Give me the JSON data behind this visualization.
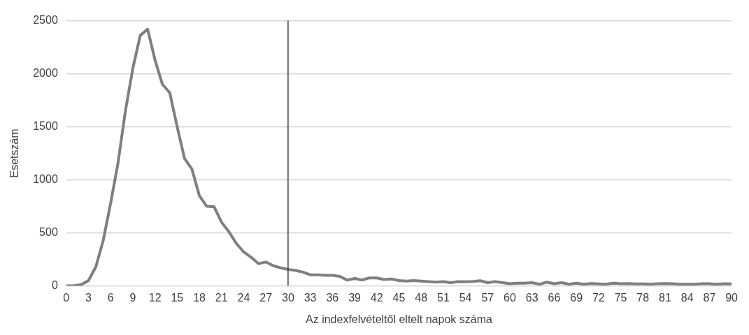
{
  "chart_data": {
    "type": "line",
    "xlabel": "Az indexfelvételtől eltelt napok száma",
    "ylabel": "Esetszám",
    "x": [
      0,
      1,
      2,
      3,
      4,
      5,
      6,
      7,
      8,
      9,
      10,
      11,
      12,
      13,
      14,
      15,
      16,
      17,
      18,
      19,
      20,
      21,
      22,
      23,
      24,
      25,
      26,
      27,
      28,
      29,
      30,
      31,
      32,
      33,
      34,
      35,
      36,
      37,
      38,
      39,
      40,
      41,
      42,
      43,
      44,
      45,
      46,
      47,
      48,
      49,
      50,
      51,
      52,
      53,
      54,
      55,
      56,
      57,
      58,
      59,
      60,
      61,
      62,
      63,
      64,
      65,
      66,
      67,
      68,
      69,
      70,
      71,
      72,
      73,
      74,
      75,
      76,
      77,
      78,
      79,
      80,
      81,
      82,
      83,
      84,
      85,
      86,
      87,
      88,
      89,
      90
    ],
    "series": [
      {
        "color": "#7f7f7f",
        "values": [
          0,
          2,
          10,
          50,
          180,
          430,
          780,
          1160,
          1650,
          2050,
          2360,
          2420,
          2130,
          1900,
          1820,
          1500,
          1200,
          1100,
          850,
          750,
          745,
          600,
          510,
          400,
          320,
          270,
          210,
          225,
          190,
          170,
          155,
          145,
          130,
          105,
          105,
          100,
          100,
          90,
          55,
          70,
          55,
          75,
          75,
          60,
          65,
          50,
          45,
          50,
          45,
          40,
          35,
          40,
          30,
          40,
          38,
          42,
          48,
          30,
          40,
          30,
          20,
          25,
          25,
          30,
          15,
          35,
          20,
          30,
          15,
          25,
          15,
          22,
          18,
          15,
          25,
          20,
          22,
          18,
          18,
          15,
          20,
          22,
          20,
          15,
          15,
          15,
          20,
          20,
          15,
          20,
          18
        ]
      }
    ],
    "xlim": [
      0,
      90
    ],
    "xticks": [
      0,
      3,
      6,
      9,
      12,
      15,
      18,
      21,
      24,
      27,
      30,
      33,
      36,
      39,
      42,
      45,
      48,
      51,
      54,
      57,
      60,
      63,
      66,
      69,
      72,
      75,
      78,
      81,
      84,
      87,
      90
    ],
    "ylim": [
      0,
      2500
    ],
    "yticks": [
      0,
      500,
      1000,
      1500,
      2000,
      2500
    ],
    "grid": "y",
    "legend": false,
    "marker": "none",
    "line_style": "solid",
    "ref_lines": [
      {
        "axis": "x",
        "value": 30,
        "color": "#404040"
      }
    ]
  }
}
